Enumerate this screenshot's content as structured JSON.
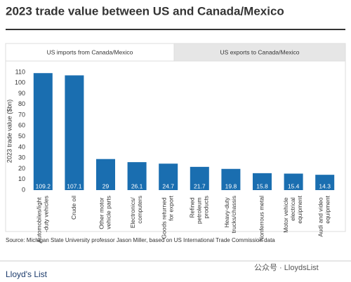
{
  "chart_data": {
    "type": "bar",
    "title": "2023 trade value between US and Canada/Mexico",
    "tabs": [
      "US imports from Canada/Mexico",
      "US exports to Canada/Mexico"
    ],
    "y_label": "2023 trade value ($bn)",
    "categories": [
      "Automobiles/light\n-duty vehicles",
      "Crude oil",
      "Other motor\nvehicle parts",
      "Electronics/\ncomputers",
      "Goods returned\nfor export",
      "Refined\npetroleum\nproducts",
      "Heavy-duty\ntrucks/chassis",
      "Nonferrous metal",
      "Motor vehicle\nelectrical\nequipment",
      "Audi and video\nequipment"
    ],
    "values": [
      109.2,
      107.1,
      29,
      26.1,
      24.7,
      21.7,
      19.8,
      15.8,
      15.4,
      14.3
    ],
    "color": "#1a6eb0",
    "ylim": [
      0,
      110
    ],
    "yticks": [
      0,
      10,
      20,
      30,
      40,
      50,
      60,
      70,
      80,
      90,
      100,
      110
    ],
    "grid": false,
    "source": "Source: Michigan State University professor Jason Miller, based on US International Trade Commission data",
    "logo": "Lloyd's List",
    "watermark": "公众号 · LloydsList"
  }
}
